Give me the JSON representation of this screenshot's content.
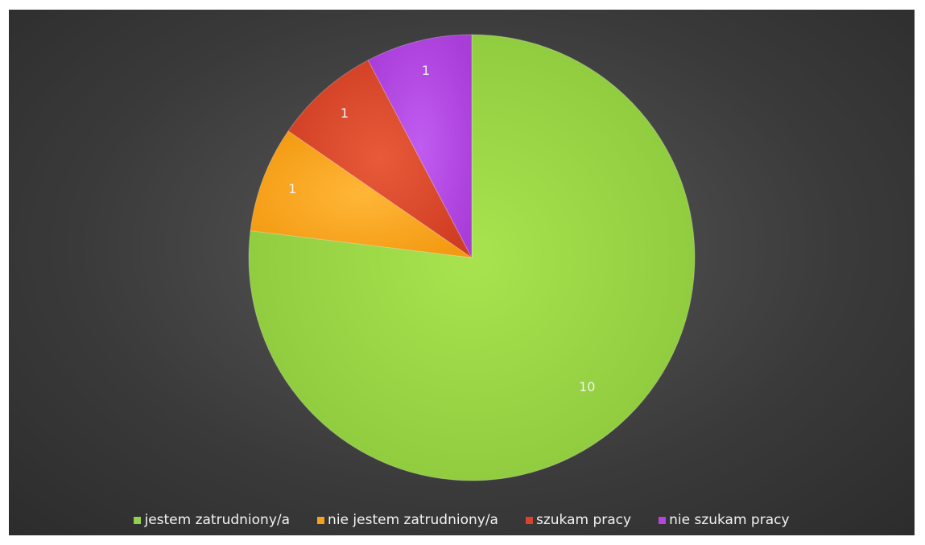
{
  "chart_data": {
    "type": "pie",
    "categories": [
      "jestem zatrudniony/a",
      "nie jestem zatrudniony/a",
      "szukam pracy",
      "nie szukam pracy"
    ],
    "values": [
      10,
      1,
      1,
      1
    ],
    "data_labels": [
      "10",
      "1",
      "1",
      "1"
    ],
    "colors": [
      "#92d050",
      "#f5a11c",
      "#d9432a",
      "#b545e0"
    ],
    "legend_position": "bottom",
    "start_angle_deg": 0,
    "direction": "clockwise",
    "title": ""
  },
  "legend": {
    "items": [
      {
        "label": "jestem zatrudniony/a",
        "color": "#92d050"
      },
      {
        "label": "nie jestem zatrudniony/a",
        "color": "#f5a11c"
      },
      {
        "label": "szukam pracy",
        "color": "#d9432a"
      },
      {
        "label": "nie szukam pracy",
        "color": "#b545e0"
      }
    ]
  }
}
